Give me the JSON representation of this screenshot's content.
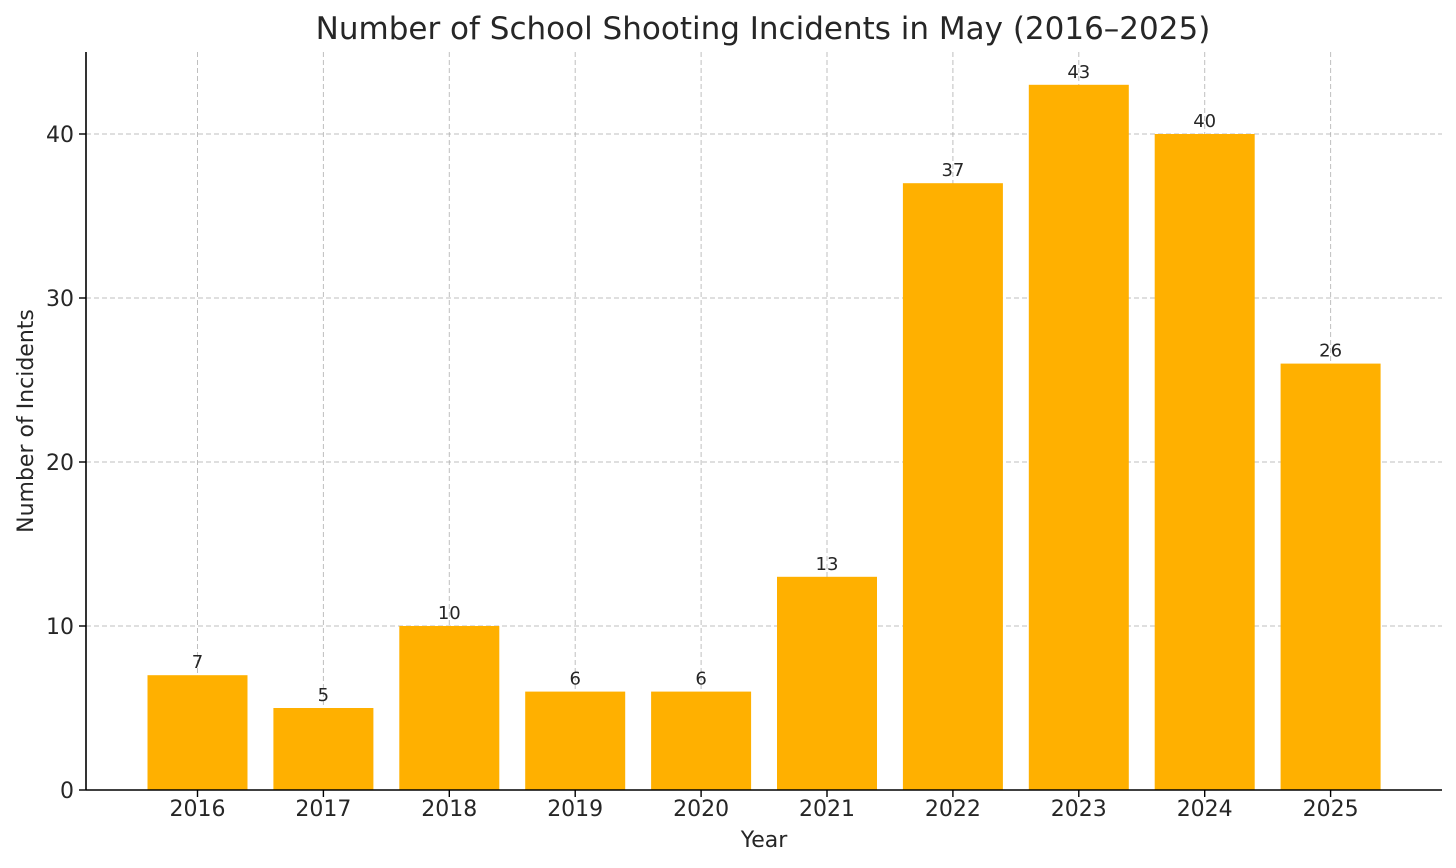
{
  "chart_data": {
    "type": "bar",
    "title": "Number of School Shooting Incidents in May (2016–2025)",
    "xlabel": "Year",
    "ylabel": "Number of Incidents",
    "categories": [
      "2016",
      "2017",
      "2018",
      "2019",
      "2020",
      "2021",
      "2022",
      "2023",
      "2024",
      "2025"
    ],
    "values": [
      7,
      5,
      10,
      6,
      6,
      13,
      37,
      43,
      40,
      26
    ],
    "ylim": [
      0,
      45
    ],
    "yticks": [
      0,
      10,
      20,
      30,
      40
    ],
    "grid": true,
    "bar_color": "#FFB000",
    "data_labels": true
  }
}
